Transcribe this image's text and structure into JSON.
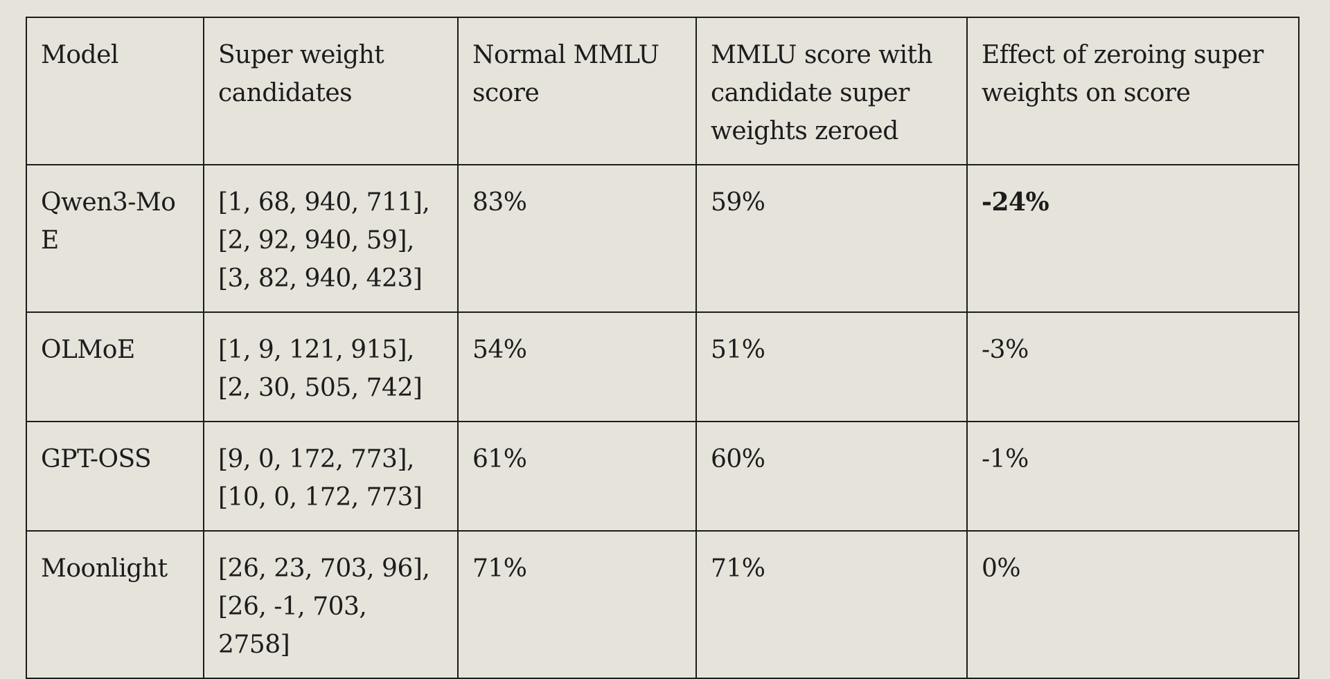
{
  "table": {
    "headers": [
      "Model",
      "Super weight candidates",
      "Normal MMLU score",
      "MMLU score with candidate super weights zeroed",
      "Effect of zeroing super weights on score"
    ],
    "rows": [
      {
        "model": "Qwen3-MoE",
        "candidates": "[1, 68, 940, 711], [2, 92, 940, 59], [3, 82, 940, 423]",
        "normal": "83%",
        "zeroed": "59%",
        "effect": "-24%"
      },
      {
        "model": "OLMoE",
        "candidates": "[1, 9, 121, 915], [2, 30, 505, 742]",
        "normal": "54%",
        "zeroed": "51%",
        "effect": "-3%"
      },
      {
        "model": "GPT-OSS",
        "candidates": "[9, 0, 172, 773], [10, 0, 172, 773]",
        "normal": "61%",
        "zeroed": "60%",
        "effect": "-1%"
      },
      {
        "model": "Moonlight",
        "candidates": "[26, 23, 703, 96], [26, -1, 703, 2758]",
        "normal": "71%",
        "zeroed": "71%",
        "effect": "0%"
      }
    ]
  }
}
